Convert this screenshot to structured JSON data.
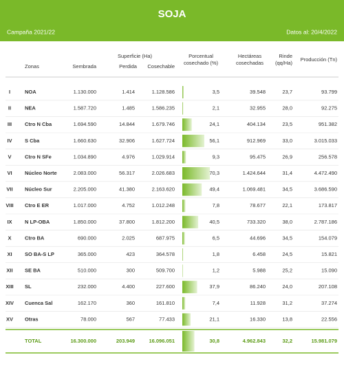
{
  "header": {
    "title": "SOJA",
    "campaign": "Campaña 2021/22",
    "date": "Datos al: 20/4/2022"
  },
  "columns": {
    "zonas": "Zonas",
    "superficie": "Superficie (Ha)",
    "sembrada": "Sembrada",
    "perdida": "Perdida",
    "cosechable": "Cosechable",
    "pct": [
      "Porcentual",
      "cosechado (%)"
    ],
    "hectareas": [
      "Hectáreas",
      "cosechadas"
    ],
    "rinde": [
      "Rinde",
      "(qq/Ha)"
    ],
    "produccion": "Producción (Tn)"
  },
  "table": {
    "rows": [
      {
        "num": "I",
        "zone": "NOA",
        "sembrada": "1.130.000",
        "perdida": "1.414",
        "cosechable": "1.128.586",
        "pct": {
          "value": 3.5,
          "label": "3,5"
        },
        "hectareas": "39.548",
        "rinde": "23,7",
        "produccion": "93.799"
      },
      {
        "num": "II",
        "zone": "NEA",
        "sembrada": "1.587.720",
        "perdida": "1.485",
        "cosechable": "1.586.235",
        "pct": {
          "value": 2.1,
          "label": "2,1"
        },
        "hectareas": "32.955",
        "rinde": "28,0",
        "produccion": "92.275"
      },
      {
        "num": "III",
        "zone": "Ctro N Cba",
        "sembrada": "1.694.590",
        "perdida": "14.844",
        "cosechable": "1.679.746",
        "pct": {
          "value": 24.1,
          "label": "24,1"
        },
        "hectareas": "404.134",
        "rinde": "23,5",
        "produccion": "951.382"
      },
      {
        "num": "IV",
        "zone": "S Cba",
        "sembrada": "1.660.630",
        "perdida": "32.906",
        "cosechable": "1.627.724",
        "pct": {
          "value": 56.1,
          "label": "56,1"
        },
        "hectareas": "912.969",
        "rinde": "33,0",
        "produccion": "3.015.033"
      },
      {
        "num": "V",
        "zone": "Ctro N SFe",
        "sembrada": "1.034.890",
        "perdida": "4.976",
        "cosechable": "1.029.914",
        "pct": {
          "value": 9.3,
          "label": "9,3"
        },
        "hectareas": "95.475",
        "rinde": "26,9",
        "produccion": "256.578"
      },
      {
        "num": "VI",
        "zone": "Núcleo Norte",
        "sembrada": "2.083.000",
        "perdida": "56.317",
        "cosechable": "2.026.683",
        "pct": {
          "value": 70.3,
          "label": "70,3"
        },
        "hectareas": "1.424.644",
        "rinde": "31,4",
        "produccion": "4.472.490"
      },
      {
        "num": "VII",
        "zone": "Núcleo Sur",
        "sembrada": "2.205.000",
        "perdida": "41.380",
        "cosechable": "2.163.620",
        "pct": {
          "value": 49.4,
          "label": "49,4"
        },
        "hectareas": "1.069.481",
        "rinde": "34,5",
        "produccion": "3.686.590"
      },
      {
        "num": "VIII",
        "zone": "Ctro E ER",
        "sembrada": "1.017.000",
        "perdida": "4.752",
        "cosechable": "1.012.248",
        "pct": {
          "value": 7.8,
          "label": "7,8"
        },
        "hectareas": "78.677",
        "rinde": "22,1",
        "produccion": "173.817"
      },
      {
        "num": "IX",
        "zone": "N LP-OBA",
        "sembrada": "1.850.000",
        "perdida": "37.800",
        "cosechable": "1.812.200",
        "pct": {
          "value": 40.5,
          "label": "40,5"
        },
        "hectareas": "733.320",
        "rinde": "38,0",
        "produccion": "2.787.186"
      },
      {
        "num": "X",
        "zone": "Ctro BA",
        "sembrada": "690.000",
        "perdida": "2.025",
        "cosechable": "687.975",
        "pct": {
          "value": 6.5,
          "label": "6,5"
        },
        "hectareas": "44.696",
        "rinde": "34,5",
        "produccion": "154.079"
      },
      {
        "num": "XI",
        "zone": "SO BA-S LP",
        "sembrada": "365.000",
        "perdida": "423",
        "cosechable": "364.578",
        "pct": {
          "value": 1.8,
          "label": "1,8"
        },
        "hectareas": "6.458",
        "rinde": "24,5",
        "produccion": "15.821"
      },
      {
        "num": "XII",
        "zone": "SE BA",
        "sembrada": "510.000",
        "perdida": "300",
        "cosechable": "509.700",
        "pct": {
          "value": 1.2,
          "label": "1,2"
        },
        "hectareas": "5.988",
        "rinde": "25,2",
        "produccion": "15.090"
      },
      {
        "num": "XIII",
        "zone": "SL",
        "sembrada": "232.000",
        "perdida": "4.400",
        "cosechable": "227.600",
        "pct": {
          "value": 37.9,
          "label": "37,9"
        },
        "hectareas": "86.240",
        "rinde": "24,0",
        "produccion": "207.108"
      },
      {
        "num": "XIV",
        "zone": "Cuenca Sal",
        "sembrada": "162.170",
        "perdida": "360",
        "cosechable": "161.810",
        "pct": {
          "value": 7.4,
          "label": "7,4"
        },
        "hectareas": "11.928",
        "rinde": "31,2",
        "produccion": "37.274"
      },
      {
        "num": "XV",
        "zone": "Otras",
        "sembrada": "78.000",
        "perdida": "567",
        "cosechable": "77.433",
        "pct": {
          "value": 21.1,
          "label": "21,1"
        },
        "hectareas": "16.330",
        "rinde": "13,8",
        "produccion": "22.556"
      }
    ],
    "total": {
      "zone": "TOTAL",
      "sembrada": "16.300.000",
      "perdida": "203.949",
      "cosechable": "16.096.051",
      "pct": {
        "value": 30.8,
        "label": "30,8"
      },
      "hectareas": "4.962.843",
      "rinde": "32,2",
      "produccion": "15.981.079"
    }
  }
}
